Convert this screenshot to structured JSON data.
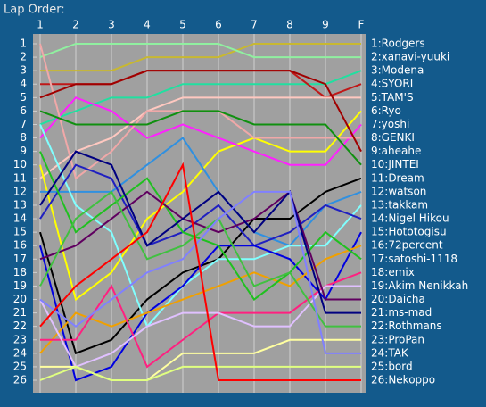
{
  "chart_data": {
    "type": "line",
    "title": "Lap Order:",
    "categories": [
      "1",
      "2",
      "3",
      "4",
      "5",
      "6",
      "7",
      "8",
      "9",
      "F"
    ],
    "ylim": [
      1,
      26
    ],
    "yticks": [
      1,
      2,
      3,
      4,
      5,
      6,
      7,
      8,
      9,
      10,
      11,
      12,
      13,
      14,
      15,
      16,
      17,
      18,
      19,
      20,
      21,
      22,
      23,
      24,
      25,
      26
    ],
    "y_inverted": true,
    "grid": true,
    "series": [
      {
        "name": "1:Rodgers",
        "color": "#c8b830",
        "values": [
          3,
          3,
          3,
          2,
          2,
          2,
          1,
          1,
          1,
          1
        ]
      },
      {
        "name": "2:xanavi-yuuki",
        "color": "#90f0a0",
        "values": [
          2,
          1,
          1,
          1,
          1,
          1,
          2,
          2,
          2,
          2
        ]
      },
      {
        "name": "3:Modena",
        "color": "#20e0a0",
        "values": [
          7,
          6,
          5,
          5,
          4,
          4,
          4,
          4,
          4,
          3
        ]
      },
      {
        "name": "4:SYORI",
        "color": "#c01818",
        "values": [
          4,
          4,
          4,
          3,
          3,
          3,
          3,
          3,
          5,
          4
        ]
      },
      {
        "name": "5:TAM'S",
        "color": "#ffc8c0",
        "values": [
          11,
          9,
          8,
          6,
          5,
          5,
          5,
          5,
          5,
          5
        ]
      },
      {
        "name": "6:Ryo",
        "color": "#ffff00",
        "values": [
          10,
          20,
          18,
          14,
          12,
          9,
          8,
          9,
          9,
          6
        ]
      },
      {
        "name": "7:yoshi",
        "color": "#ff20ff",
        "values": [
          8,
          5,
          6,
          8,
          7,
          8,
          9,
          10,
          10,
          7
        ]
      },
      {
        "name": "8:GENKI",
        "color": "#f0a8a8",
        "values": [
          1,
          11,
          9,
          6,
          6,
          6,
          8,
          8,
          8,
          8
        ]
      },
      {
        "name": "9:aheahe",
        "color": "#a00000",
        "values": [
          5,
          4,
          4,
          3,
          3,
          3,
          3,
          3,
          4,
          9
        ]
      },
      {
        "name": "10:JINTEI",
        "color": "#109010",
        "values": [
          6,
          7,
          7,
          7,
          6,
          6,
          7,
          7,
          7,
          10
        ]
      },
      {
        "name": "11:Dream",
        "color": "#000000",
        "values": [
          15,
          24,
          23,
          20,
          18,
          17,
          14,
          14,
          12,
          11
        ]
      },
      {
        "name": "12:watson",
        "color": "#3090e0",
        "values": [
          12,
          12,
          12,
          10,
          8,
          12,
          15,
          16,
          13,
          12
        ]
      },
      {
        "name": "13:takkam",
        "color": "#80ffff",
        "values": [
          7,
          13,
          15,
          22,
          19,
          17,
          17,
          16,
          16,
          13
        ]
      },
      {
        "name": "14:Nigel Hikou",
        "color": "#2020c0",
        "values": [
          14,
          10,
          11,
          16,
          15,
          13,
          16,
          15,
          13,
          14
        ]
      },
      {
        "name": "15:Hototogisu",
        "color": "#0000e0",
        "values": [
          16,
          26,
          25,
          21,
          19,
          16,
          16,
          17,
          20,
          15
        ]
      },
      {
        "name": "16:72percent",
        "color": "#f0a000",
        "values": [
          24,
          21,
          22,
          21,
          20,
          19,
          18,
          19,
          17,
          16
        ]
      },
      {
        "name": "17:satoshi-1118",
        "color": "#20c020",
        "values": [
          9,
          15,
          13,
          11,
          15,
          16,
          20,
          18,
          15,
          17
        ]
      },
      {
        "name": "18:emix",
        "color": "#ff2080",
        "values": [
          23,
          23,
          19,
          25,
          23,
          21,
          21,
          21,
          19,
          18
        ]
      },
      {
        "name": "19:Akim Nenikkah",
        "color": "#e0c0ff",
        "values": [
          20,
          25,
          24,
          22,
          21,
          21,
          22,
          22,
          19,
          19
        ]
      },
      {
        "name": "20:Daicha",
        "color": "#600060",
        "values": [
          17,
          16,
          14,
          12,
          14,
          15,
          14,
          12,
          20,
          20
        ]
      },
      {
        "name": "21:ms-mad",
        "color": "#000080",
        "values": [
          13,
          9,
          10,
          16,
          14,
          12,
          15,
          12,
          21,
          21
        ]
      },
      {
        "name": "22:Rothmans",
        "color": "#40c040",
        "values": [
          19,
          14,
          12,
          17,
          16,
          14,
          19,
          18,
          22,
          22
        ]
      },
      {
        "name": "23:ProPan",
        "color": "#ffffa0",
        "values": [
          25,
          25,
          26,
          26,
          24,
          24,
          24,
          23,
          23,
          23
        ]
      },
      {
        "name": "24:TAK",
        "color": "#8080ff",
        "values": [
          20,
          22,
          20,
          18,
          17,
          14,
          12,
          12,
          24,
          24
        ]
      },
      {
        "name": "25:bord",
        "color": "#e0ff80",
        "values": [
          26,
          25,
          26,
          26,
          25,
          25,
          25,
          25,
          25,
          25
        ]
      },
      {
        "name": "26:Nekoppo",
        "color": "#ff0000",
        "values": [
          22,
          19,
          17,
          15,
          10,
          26,
          26,
          26,
          26,
          26
        ]
      }
    ]
  }
}
